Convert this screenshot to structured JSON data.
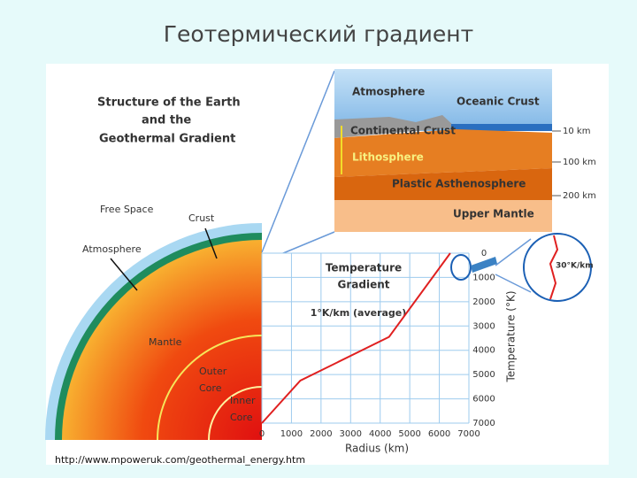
{
  "title": "Геотермический градиент",
  "source_url": "http://www.mpoweruk.com/geothermal_energy.htm",
  "diagram": {
    "heading": [
      "Structure of the Earth",
      "and the",
      "Geothermal Gradient"
    ],
    "earth_labels": {
      "free_space": "Free Space",
      "crust": "Crust",
      "atmosphere": "Atmosphere",
      "mantle": "Mantle",
      "outer_core": [
        "Outer",
        "Core"
      ],
      "inner_core": [
        "Inner",
        "Core"
      ]
    },
    "cross_section": {
      "atmosphere": "Atmosphere",
      "oceanic_crust": "Oceanic Crust",
      "continental_crust": "Continental Crust",
      "lithosphere": "Lithosphere",
      "asthenosphere": "Plastic Asthenosphere",
      "upper_mantle": "Upper Mantle",
      "depths": [
        "10 km",
        "100 km",
        "200 km"
      ]
    },
    "inset_label": "30°K/km"
  },
  "graph": {
    "type": "line",
    "title": [
      "Temperature",
      "Gradient"
    ],
    "annotation": "1°K/km (average)",
    "x_label": "Radius (km)",
    "y_label": "Temperature (°K)",
    "x": [
      0,
      1300,
      4300,
      6370
    ],
    "values": [
      7000,
      5250,
      3450,
      0
    ],
    "color": "#e02020",
    "xlim": [
      0,
      7000
    ],
    "xticks": [
      0,
      1000,
      2000,
      3000,
      4000,
      5000,
      6000,
      7000
    ],
    "ylim": [
      7000,
      0
    ],
    "yticks": [
      0,
      1000,
      2000,
      3000,
      4000,
      5000,
      6000,
      7000
    ],
    "grid": true
  }
}
